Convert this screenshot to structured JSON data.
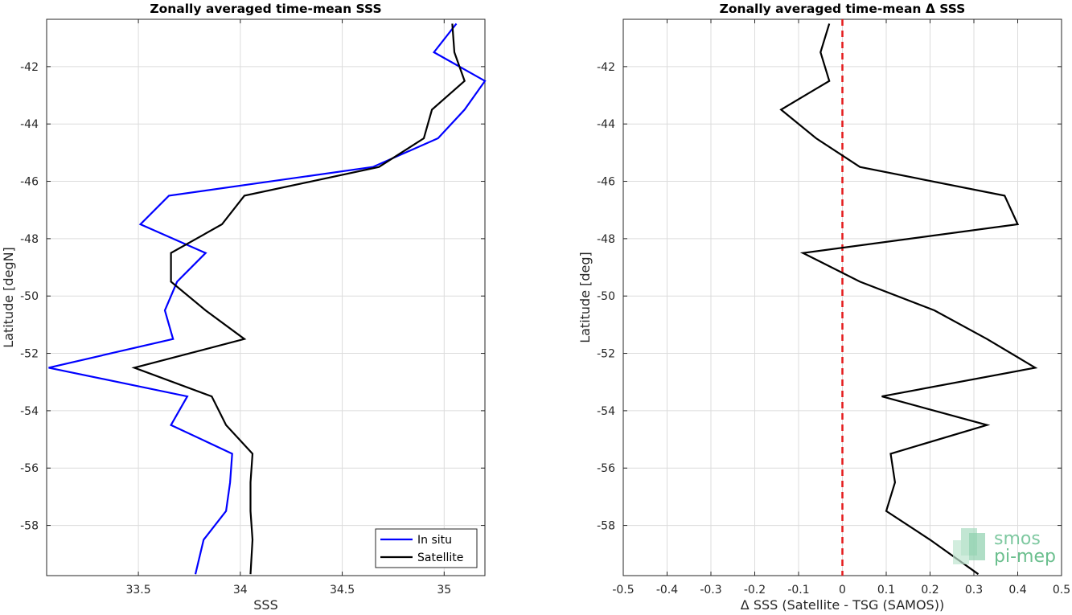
{
  "chart_data": [
    {
      "type": "line",
      "title": "Zonally averaged time-mean SSS",
      "xlabel": "SSS",
      "ylabel": "Latitude [degN]",
      "xlim": [
        33.05,
        35.2
      ],
      "ylim": [
        -59.75,
        -40.35
      ],
      "xticks": [
        33.5,
        34,
        34.5,
        35
      ],
      "yticks": [
        -58,
        -56,
        -54,
        -52,
        -50,
        -48,
        -46,
        -44,
        -42
      ],
      "grid": true,
      "legend": "bottom-right",
      "series": [
        {
          "name": "In situ",
          "color": "#0000ff",
          "x": [
            35.06,
            34.95,
            35.2,
            35.1,
            34.97,
            34.65,
            33.65,
            33.51,
            33.83,
            33.69,
            33.63,
            33.67,
            33.06,
            33.74,
            33.66,
            33.96,
            33.95,
            33.93,
            33.82,
            33.78
          ],
          "y": [
            -40.5,
            -41.5,
            -42.5,
            -43.5,
            -44.5,
            -45.5,
            -46.5,
            -47.5,
            -48.5,
            -49.5,
            -50.5,
            -51.5,
            -52.5,
            -53.5,
            -54.5,
            -55.5,
            -56.5,
            -57.5,
            -58.5,
            -59.7
          ]
        },
        {
          "name": "Satellite",
          "color": "#000000",
          "x": [
            35.04,
            35.05,
            35.1,
            34.94,
            34.9,
            34.68,
            34.02,
            33.91,
            33.66,
            33.66,
            33.83,
            34.02,
            33.48,
            33.86,
            33.93,
            34.06,
            34.05,
            34.05,
            34.06,
            34.05
          ],
          "y": [
            -40.5,
            -41.5,
            -42.5,
            -43.5,
            -44.5,
            -45.5,
            -46.5,
            -47.5,
            -48.5,
            -49.5,
            -50.5,
            -51.5,
            -52.5,
            -53.5,
            -54.5,
            -55.5,
            -56.5,
            -57.5,
            -58.5,
            -59.7
          ]
        }
      ]
    },
    {
      "type": "line",
      "title": "Zonally averaged time-mean Δ SSS",
      "xlabel": "Δ SSS (Satellite - TSG (SAMOS))",
      "ylabel": "Latitude [deg]",
      "xlim": [
        -0.5,
        0.5
      ],
      "ylim": [
        -59.75,
        -40.35
      ],
      "xticks": [
        -0.5,
        -0.4,
        -0.3,
        -0.2,
        -0.1,
        0,
        0.1,
        0.2,
        0.3,
        0.4,
        0.5
      ],
      "yticks": [
        -58,
        -56,
        -54,
        -52,
        -50,
        -48,
        -46,
        -44,
        -42
      ],
      "grid": true,
      "reference_line": {
        "x": 0,
        "color": "#e41a1c",
        "style": "dashed"
      },
      "series": [
        {
          "color": "#000000",
          "x": [
            -0.03,
            -0.05,
            -0.03,
            -0.14,
            -0.06,
            0.04,
            0.37,
            0.4,
            -0.09,
            0.04,
            0.21,
            0.33,
            0.44,
            0.09,
            0.33,
            0.11,
            0.12,
            0.1,
            0.2,
            0.31
          ],
          "y": [
            -40.5,
            -41.5,
            -42.5,
            -43.5,
            -44.5,
            -45.5,
            -46.5,
            -47.5,
            -48.5,
            -49.5,
            -50.5,
            -51.5,
            -52.5,
            -53.5,
            -54.5,
            -55.5,
            -56.5,
            -57.5,
            -58.5,
            -59.7
          ]
        }
      ]
    }
  ],
  "logo": {
    "line1": "smos",
    "line2": "pi-mep"
  }
}
